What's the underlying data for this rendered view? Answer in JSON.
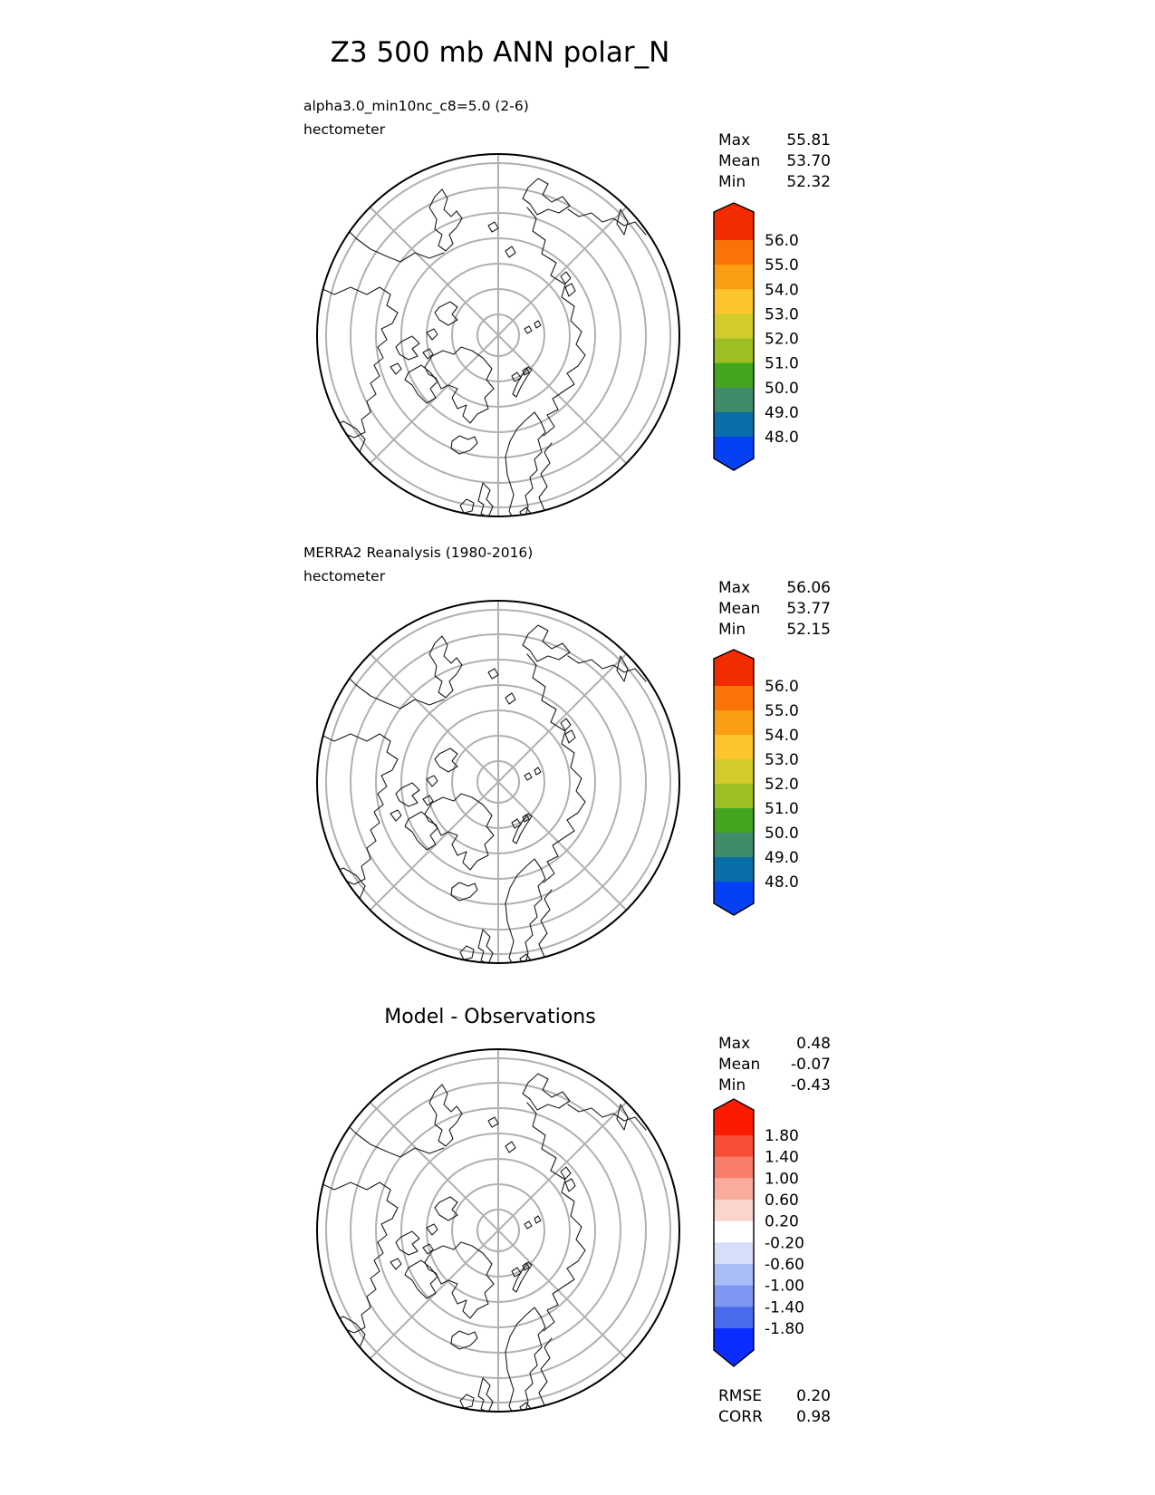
{
  "title": "Z3 500 mb ANN polar_N",
  "panels": [
    {
      "label_line1": "alpha3.0_min10nc_c8=5.0 (2-6)",
      "label_line2": "hectometer",
      "stats": [
        {
          "label": "Max",
          "value": "55.81"
        },
        {
          "label": "Mean",
          "value": "53.70"
        },
        {
          "label": "Min",
          "value": "52.32"
        }
      ],
      "colorbar": {
        "tick_labels": [
          "56.0",
          "55.0",
          "54.0",
          "53.0",
          "52.0",
          "51.0",
          "50.0",
          "49.0",
          "48.0"
        ],
        "segment_colors": [
          "#f22b00",
          "#f97306",
          "#fb9e13",
          "#fcc52c",
          "#d2cb2b",
          "#9dbf24",
          "#44a51f",
          "#3f8d68",
          "#0a6fa8",
          "#0540f5"
        ]
      }
    },
    {
      "label_line1": "MERRA2 Reanalysis (1980-2016)",
      "label_line2": "hectometer",
      "stats": [
        {
          "label": "Max",
          "value": "56.06"
        },
        {
          "label": "Mean",
          "value": "53.77"
        },
        {
          "label": "Min",
          "value": "52.15"
        }
      ],
      "colorbar": {
        "tick_labels": [
          "56.0",
          "55.0",
          "54.0",
          "53.0",
          "52.0",
          "51.0",
          "50.0",
          "49.0",
          "48.0"
        ],
        "segment_colors": [
          "#f22b00",
          "#f97306",
          "#fb9e13",
          "#fcc52c",
          "#d2cb2b",
          "#9dbf24",
          "#44a51f",
          "#3f8d68",
          "#0a6fa8",
          "#0540f5"
        ]
      }
    },
    {
      "title": "Model - Observations",
      "stats": [
        {
          "label": "Max",
          "value": "0.48"
        },
        {
          "label": "Mean",
          "value": "-0.07"
        },
        {
          "label": "Min",
          "value": "-0.43"
        }
      ],
      "colorbar": {
        "tick_labels": [
          "1.80",
          "1.40",
          "1.00",
          "0.60",
          "0.20",
          "-0.20",
          "-0.60",
          "-1.00",
          "-1.40",
          "-1.80"
        ],
        "segment_colors": [
          "#fa1b00",
          "#f94e36",
          "#f87e6b",
          "#f9ab9c",
          "#fbd4cc",
          "#ffffff",
          "#d6def8",
          "#aabdf6",
          "#7d97f2",
          "#4a6bee",
          "#0b2cfe"
        ]
      },
      "metrics": [
        {
          "label": "RMSE",
          "value": "0.20"
        },
        {
          "label": "CORR",
          "value": "0.98"
        }
      ]
    }
  ],
  "map_style": {
    "graticule_color": "#b0b0b0",
    "coastline_color": "#1a1a1a",
    "boundary_color": "#000000"
  },
  "chart_data": {
    "type": "heatmap",
    "title": "Z3 500 mb ANN polar_N",
    "variable": "Z3",
    "level": "500 mb",
    "season": "ANN",
    "projection": "polar_N",
    "legend_position": "right",
    "panels": [
      {
        "name": "model",
        "label": "alpha3.0_min10nc_c8=5.0 (2-6)",
        "units": "hectometer",
        "max": 55.81,
        "mean": 53.7,
        "min": 52.32,
        "colorbar_ticks": [
          56.0,
          55.0,
          54.0,
          53.0,
          52.0,
          51.0,
          50.0,
          49.0,
          48.0
        ],
        "colorbar_extend": "both"
      },
      {
        "name": "observations",
        "label": "MERRA2 Reanalysis (1980-2016)",
        "units": "hectometer",
        "max": 56.06,
        "mean": 53.77,
        "min": 52.15,
        "colorbar_ticks": [
          56.0,
          55.0,
          54.0,
          53.0,
          52.0,
          51.0,
          50.0,
          49.0,
          48.0
        ],
        "colorbar_extend": "both"
      },
      {
        "name": "difference",
        "label": "Model - Observations",
        "max": 0.48,
        "mean": -0.07,
        "min": -0.43,
        "colorbar_ticks": [
          1.8,
          1.4,
          1.0,
          0.6,
          0.2,
          -0.2,
          -0.6,
          -1.0,
          -1.4,
          -1.8
        ],
        "colorbar_extend": "both",
        "rmse": 0.2,
        "corr": 0.98
      }
    ]
  }
}
